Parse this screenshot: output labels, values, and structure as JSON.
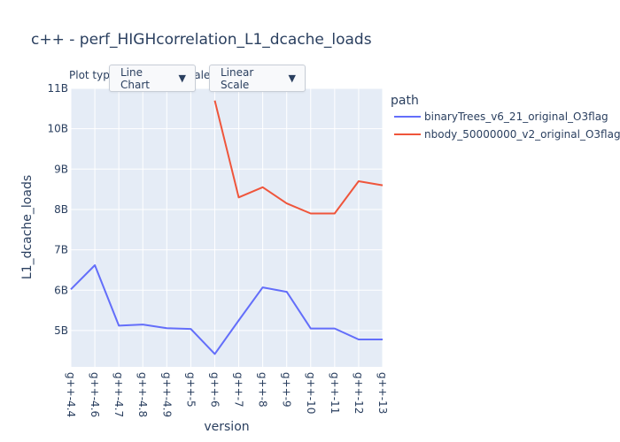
{
  "controls": {
    "plot_type_label": "Plot type",
    "scale_label": "Scale:",
    "plot_type_value": "Line Chart",
    "scale_value": "Linear Scale"
  },
  "chart_data": {
    "type": "line",
    "title": "c++ - perf_HIGHcorrelation_L1_dcache_loads",
    "xlabel": "version",
    "ylabel": "L1_dcache_loads",
    "legend_title": "path",
    "legend_position": "top-right",
    "categories": [
      "g++-4.4",
      "g++-4.6",
      "g++-4.7",
      "g++-4.8",
      "g++-4.9",
      "g++-5",
      "g++-6",
      "g++-7",
      "g++-8",
      "g++-9",
      "g++-10",
      "g++-11",
      "g++-12",
      "g++-13"
    ],
    "ylim": [
      4.1,
      11.0
    ],
    "yticks": [
      5,
      6,
      7,
      8,
      9,
      10,
      11
    ],
    "ytick_labels": [
      "5B",
      "6B",
      "7B",
      "8B",
      "9B",
      "10B",
      "11B"
    ],
    "grid": true,
    "series": [
      {
        "name": "binaryTrees_v6_21_original_O3flag",
        "color": "#636efa",
        "values": [
          6.02,
          6.62,
          5.12,
          5.15,
          5.06,
          5.04,
          4.42,
          5.25,
          6.07,
          5.96,
          5.05,
          5.05,
          4.78,
          4.78
        ]
      },
      {
        "name": "nbody_50000000_v2_original_O3flag",
        "color": "#ef553b",
        "values": [
          null,
          null,
          null,
          null,
          null,
          null,
          10.7,
          8.3,
          8.55,
          8.15,
          7.9,
          7.9,
          8.7,
          8.6
        ]
      }
    ]
  }
}
